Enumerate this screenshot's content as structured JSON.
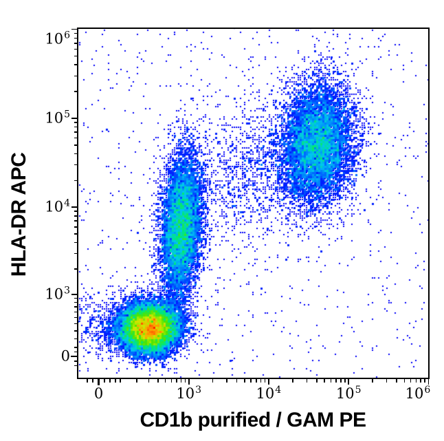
{
  "chart_data": {
    "type": "scatter",
    "subtype": "flow-cytometry pseudocolor density dot plot",
    "title": "",
    "x_axis": {
      "label": "CD1b purified / GAM PE",
      "scale": "logicle-asinh",
      "linear_width": 150,
      "min": -100,
      "max": 1030000,
      "major_ticks": [
        {
          "value": 0,
          "text": "0"
        },
        {
          "value": 1000,
          "base": "10",
          "exp": "3"
        },
        {
          "value": 10000,
          "base": "10",
          "exp": "4"
        },
        {
          "value": 100000,
          "base": "10",
          "exp": "5"
        },
        {
          "value": 1000000,
          "base": "10",
          "exp": "6"
        }
      ],
      "minor_ticks": [
        -50,
        -25,
        25,
        50,
        75,
        100,
        200,
        300,
        400,
        500,
        600,
        700,
        800,
        900,
        2000,
        3000,
        4000,
        5000,
        6000,
        7000,
        8000,
        9000,
        20000,
        30000,
        40000,
        50000,
        60000,
        70000,
        80000,
        90000,
        200000,
        300000,
        400000,
        500000,
        600000,
        700000,
        800000,
        900000
      ]
    },
    "y_axis": {
      "label": "HLA-DR APC",
      "scale": "logicle-asinh",
      "linear_width": 420,
      "min": -260,
      "max": 1050000,
      "major_ticks": [
        {
          "value": 0,
          "text": "0"
        },
        {
          "value": 1000,
          "base": "10",
          "exp": "3"
        },
        {
          "value": 10000,
          "base": "10",
          "exp": "4"
        },
        {
          "value": 100000,
          "base": "10",
          "exp": "5"
        },
        {
          "value": 1000000,
          "base": "10",
          "exp": "6"
        }
      ],
      "minor_ticks": [
        -100,
        -50,
        50,
        100,
        200,
        300,
        400,
        500,
        600,
        700,
        800,
        900,
        2000,
        3000,
        4000,
        5000,
        6000,
        7000,
        8000,
        9000,
        20000,
        30000,
        40000,
        50000,
        60000,
        70000,
        80000,
        90000,
        200000,
        300000,
        400000,
        500000,
        600000,
        700000,
        800000,
        900000
      ]
    },
    "events_total": 30000,
    "seed": 13,
    "populations": [
      {
        "name": "population-1-low-low-dense",
        "center": [
          305,
          335
        ],
        "sigma_asinh": [
          0.44,
          0.33
        ],
        "rho": 0.0,
        "weight": 0.41,
        "peak_color": "red"
      },
      {
        "name": "population-2-hladr-column",
        "center": [
          800,
          6000
        ],
        "sigma_asinh": [
          0.3,
          0.98
        ],
        "rho": 0.2,
        "weight": 0.24,
        "peak_color": "green"
      },
      {
        "name": "population-3-double-positive",
        "center": [
          41000,
          51000
        ],
        "sigma_asinh": [
          0.55,
          0.8
        ],
        "rho": 0.1,
        "weight": 0.26,
        "peak_color": "green"
      },
      {
        "name": "population-4-bridge-scatter",
        "center": [
          5500,
          25000
        ],
        "sigma_asinh": [
          1.1,
          1.0
        ],
        "rho": 0.45,
        "weight": 0.04,
        "peak_color": "blue"
      },
      {
        "name": "population-5-left-tail",
        "center": [
          50,
          400
        ],
        "sigma_asinh": [
          0.8,
          0.45
        ],
        "rho": 0.0,
        "weight": 0.02,
        "peak_color": "blue"
      }
    ],
    "background_noise": {
      "weight": 0.03,
      "distribution": "uniform"
    },
    "colormap": [
      [
        0.0,
        "#0000c8"
      ],
      [
        0.22,
        "#0000ff"
      ],
      [
        0.34,
        "#0068ff"
      ],
      [
        0.45,
        "#00c4f0"
      ],
      [
        0.56,
        "#00e878"
      ],
      [
        0.67,
        "#50e400"
      ],
      [
        0.78,
        "#c8ee00"
      ],
      [
        0.88,
        "#ff9c00"
      ],
      [
        1.0,
        "#ff1c00"
      ]
    ],
    "axis_color": "#000000",
    "background_color": "#ffffff",
    "legend": null,
    "grid": false
  }
}
